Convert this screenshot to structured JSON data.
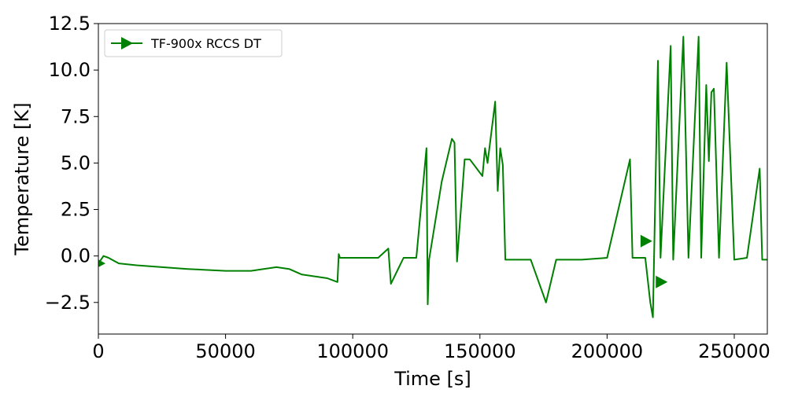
{
  "chart_data": {
    "type": "line",
    "title": "",
    "xlabel": "Time [s]",
    "ylabel": "Temperature [K]",
    "xlim": [
      0,
      263000
    ],
    "ylim": [
      -4.2,
      12.5
    ],
    "xticks": [
      0,
      50000,
      100000,
      150000,
      200000,
      250000
    ],
    "xtick_labels": [
      "0",
      "50000",
      "100000",
      "150000",
      "200000",
      "250000"
    ],
    "yticks": [
      -2.5,
      0.0,
      2.5,
      5.0,
      7.5,
      10.0,
      12.5
    ],
    "ytick_labels": [
      "−2.5",
      "0.0",
      "2.5",
      "5.0",
      "7.5",
      "10.0",
      "12.5"
    ],
    "grid": false,
    "legend_position": "top-left",
    "series": [
      {
        "name": "TF-900x RCCS DT",
        "color": "#008000",
        "marker": "triangle-right",
        "markevery_points": [
          [
            0,
            -0.4
          ],
          [
            215000,
            0.8
          ],
          [
            221000,
            -1.4
          ]
        ],
        "x": [
          0,
          2000,
          4000,
          8000,
          15000,
          25000,
          35000,
          50000,
          60000,
          70000,
          75000,
          80000,
          90000,
          94000,
          94500,
          95000,
          100000,
          110000,
          114000,
          115000,
          120000,
          125000,
          129000,
          129500,
          130000,
          135000,
          139000,
          140000,
          141000,
          144000,
          146000,
          151000,
          152000,
          153000,
          156000,
          157000,
          158000,
          159000,
          160000,
          170000,
          176000,
          180000,
          190000,
          200000,
          209000,
          210000,
          215000,
          217000,
          218000,
          220000,
          221000,
          225000,
          226000,
          230000,
          232000,
          236000,
          237000,
          239000,
          240000,
          241000,
          242000,
          244000,
          247000,
          250000,
          255000,
          260000,
          261000,
          263000
        ],
        "y": [
          -0.4,
          0.0,
          -0.1,
          -0.4,
          -0.5,
          -0.6,
          -0.7,
          -0.8,
          -0.8,
          -0.6,
          -0.7,
          -1.0,
          -1.2,
          -1.4,
          0.1,
          -0.1,
          -0.1,
          -0.1,
          0.4,
          -1.5,
          -0.1,
          -0.1,
          5.8,
          -2.6,
          -0.2,
          4.0,
          6.3,
          6.1,
          -0.3,
          5.2,
          5.2,
          4.3,
          5.8,
          5.0,
          8.3,
          3.5,
          5.8,
          4.9,
          -0.2,
          -0.2,
          -2.5,
          -0.2,
          -0.2,
          -0.1,
          5.2,
          -0.1,
          -0.1,
          -2.5,
          -3.3,
          10.5,
          -0.1,
          11.3,
          -0.2,
          11.8,
          -0.1,
          11.8,
          -0.1,
          9.2,
          5.1,
          8.8,
          9.0,
          -0.1,
          10.4,
          -0.2,
          -0.1,
          4.7,
          -0.2,
          -0.2
        ]
      }
    ]
  }
}
